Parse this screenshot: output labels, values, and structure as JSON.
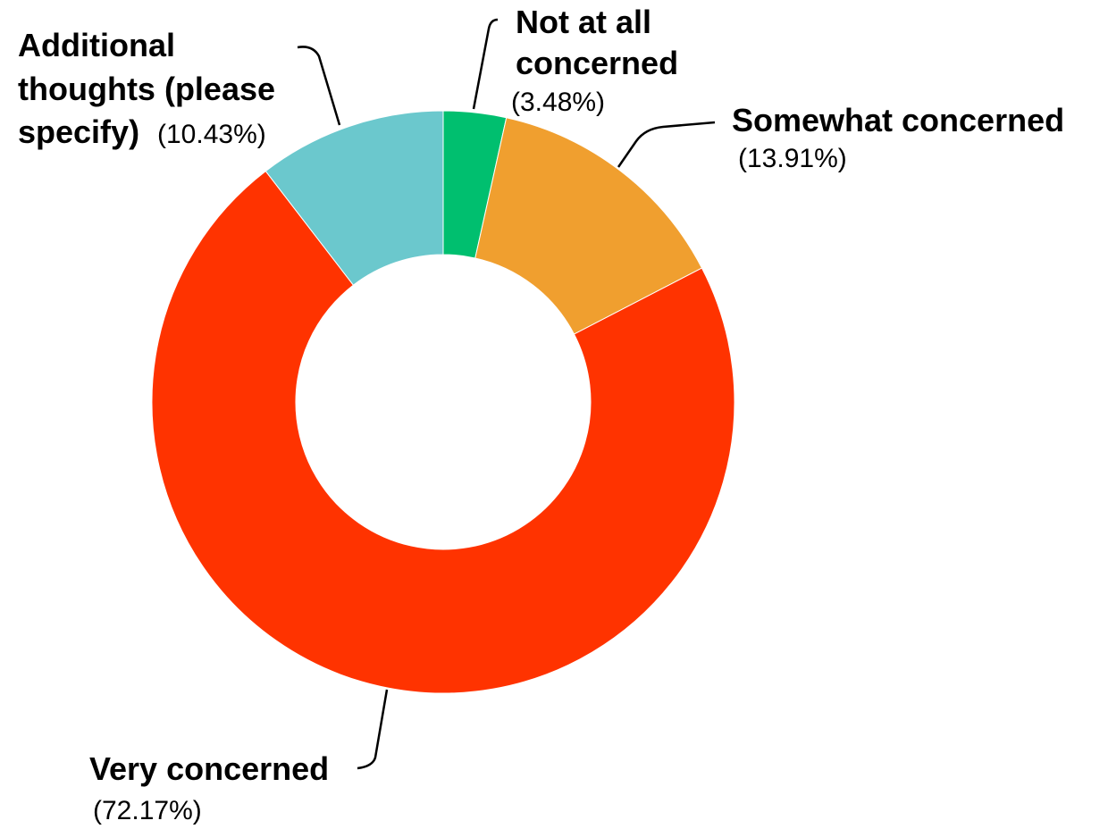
{
  "chart_data": {
    "type": "pie",
    "donut": true,
    "slices": [
      {
        "label": "Not at all concerned",
        "label_lines": [
          "Not at all",
          "concerned"
        ],
        "value": 3.48,
        "pct_text": "(3.48%)",
        "color": "#00bf6f"
      },
      {
        "label": "Somewhat concerned",
        "label_lines": [
          "Somewhat concerned"
        ],
        "value": 13.91,
        "pct_text": "(13.91%)",
        "color": "#f09f2f"
      },
      {
        "label": "Very concerned",
        "label_lines": [
          "Very concerned"
        ],
        "value": 72.17,
        "pct_text": "(72.17%)",
        "color": "#ff3300"
      },
      {
        "label": "Additional thoughts (please specify)",
        "label_lines": [
          "Additional",
          "thoughts (please",
          "specify)"
        ],
        "value": 10.43,
        "pct_text": "(10.43%)",
        "color": "#6bc8cd"
      }
    ]
  }
}
